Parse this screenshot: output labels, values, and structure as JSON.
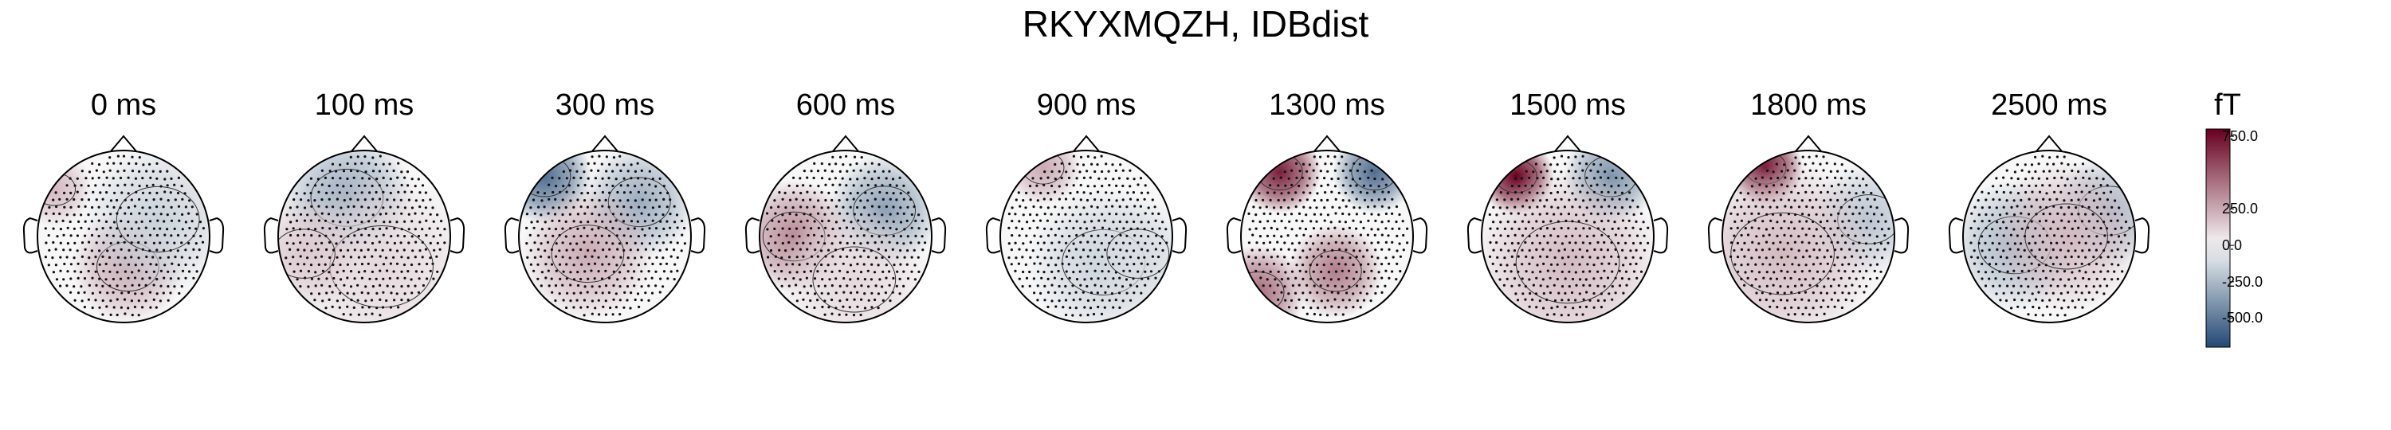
{
  "title": "RKYXMQZH, IDBdist",
  "chart_data": {
    "type": "heatmap",
    "description_kind": "MEG sensor topomap series",
    "panels": [
      {
        "label": "0 ms",
        "time_ms": 0,
        "pattern": [
          {
            "dx": 0.05,
            "dy": 0.35,
            "v": 250,
            "s": 0.3
          },
          {
            "dx": -0.8,
            "dy": -0.55,
            "v": 200,
            "s": 0.2
          },
          {
            "dx": 0.4,
            "dy": -0.2,
            "v": -150,
            "s": 0.4
          }
        ]
      },
      {
        "label": "100 ms",
        "time_ms": 100,
        "pattern": [
          {
            "dx": -0.2,
            "dy": -0.45,
            "v": -300,
            "s": 0.35
          },
          {
            "dx": 0.2,
            "dy": 0.35,
            "v": 100,
            "s": 0.5
          },
          {
            "dx": -0.7,
            "dy": 0.2,
            "v": 150,
            "s": 0.3
          }
        ]
      },
      {
        "label": "300 ms",
        "time_ms": 300,
        "pattern": [
          {
            "dx": -0.7,
            "dy": -0.7,
            "v": -550,
            "s": 0.25
          },
          {
            "dx": 0.4,
            "dy": -0.4,
            "v": -300,
            "s": 0.3
          },
          {
            "dx": -0.2,
            "dy": 0.2,
            "v": 250,
            "s": 0.35
          }
        ]
      },
      {
        "label": "600 ms",
        "time_ms": 600,
        "pattern": [
          {
            "dx": 0.45,
            "dy": -0.3,
            "v": -350,
            "s": 0.3
          },
          {
            "dx": -0.6,
            "dy": 0.0,
            "v": 350,
            "s": 0.3
          },
          {
            "dx": 0.1,
            "dy": 0.5,
            "v": 100,
            "s": 0.4
          }
        ]
      },
      {
        "label": "900 ms",
        "time_ms": 900,
        "pattern": [
          {
            "dx": -0.5,
            "dy": -0.8,
            "v": 250,
            "s": 0.2
          },
          {
            "dx": 0.2,
            "dy": 0.3,
            "v": -150,
            "s": 0.4
          },
          {
            "dx": 0.6,
            "dy": 0.2,
            "v": -100,
            "s": 0.3
          }
        ]
      },
      {
        "label": "1300 ms",
        "time_ms": 1300,
        "pattern": [
          {
            "dx": -0.55,
            "dy": -0.75,
            "v": 700,
            "s": 0.22
          },
          {
            "dx": 0.55,
            "dy": -0.75,
            "v": -550,
            "s": 0.22
          },
          {
            "dx": 0.1,
            "dy": 0.4,
            "v": 400,
            "s": 0.25
          },
          {
            "dx": -0.8,
            "dy": 0.65,
            "v": 450,
            "s": 0.25
          }
        ]
      },
      {
        "label": "1500 ms",
        "time_ms": 1500,
        "pattern": [
          {
            "dx": -0.6,
            "dy": -0.7,
            "v": 900,
            "s": 0.2
          },
          {
            "dx": 0.5,
            "dy": -0.7,
            "v": -400,
            "s": 0.25
          },
          {
            "dx": 0.0,
            "dy": 0.3,
            "v": 200,
            "s": 0.5
          }
        ]
      },
      {
        "label": "1800 ms",
        "time_ms": 1800,
        "pattern": [
          {
            "dx": -0.5,
            "dy": -0.8,
            "v": 750,
            "s": 0.2
          },
          {
            "dx": 0.7,
            "dy": -0.2,
            "v": -200,
            "s": 0.3
          },
          {
            "dx": -0.3,
            "dy": 0.2,
            "v": 200,
            "s": 0.5
          }
        ]
      },
      {
        "label": "2500 ms",
        "time_ms": 2500,
        "pattern": [
          {
            "dx": -0.4,
            "dy": 0.1,
            "v": -250,
            "s": 0.35
          },
          {
            "dx": 0.7,
            "dy": -0.3,
            "v": -250,
            "s": 0.3
          },
          {
            "dx": 0.2,
            "dy": 0.0,
            "v": 200,
            "s": 0.4
          }
        ]
      }
    ],
    "colorbar": {
      "unit": "fT",
      "range": [
        -700,
        800
      ],
      "ticks": [
        750,
        250,
        0,
        -250,
        -500
      ],
      "tick_labels": [
        "750.0",
        "250.0",
        "0.0",
        "-250.0",
        "-500.0"
      ],
      "colormap": "RdBu_r",
      "low_color": "#053061",
      "mid_color": "#f7f7f7",
      "high_color": "#67001f"
    }
  }
}
